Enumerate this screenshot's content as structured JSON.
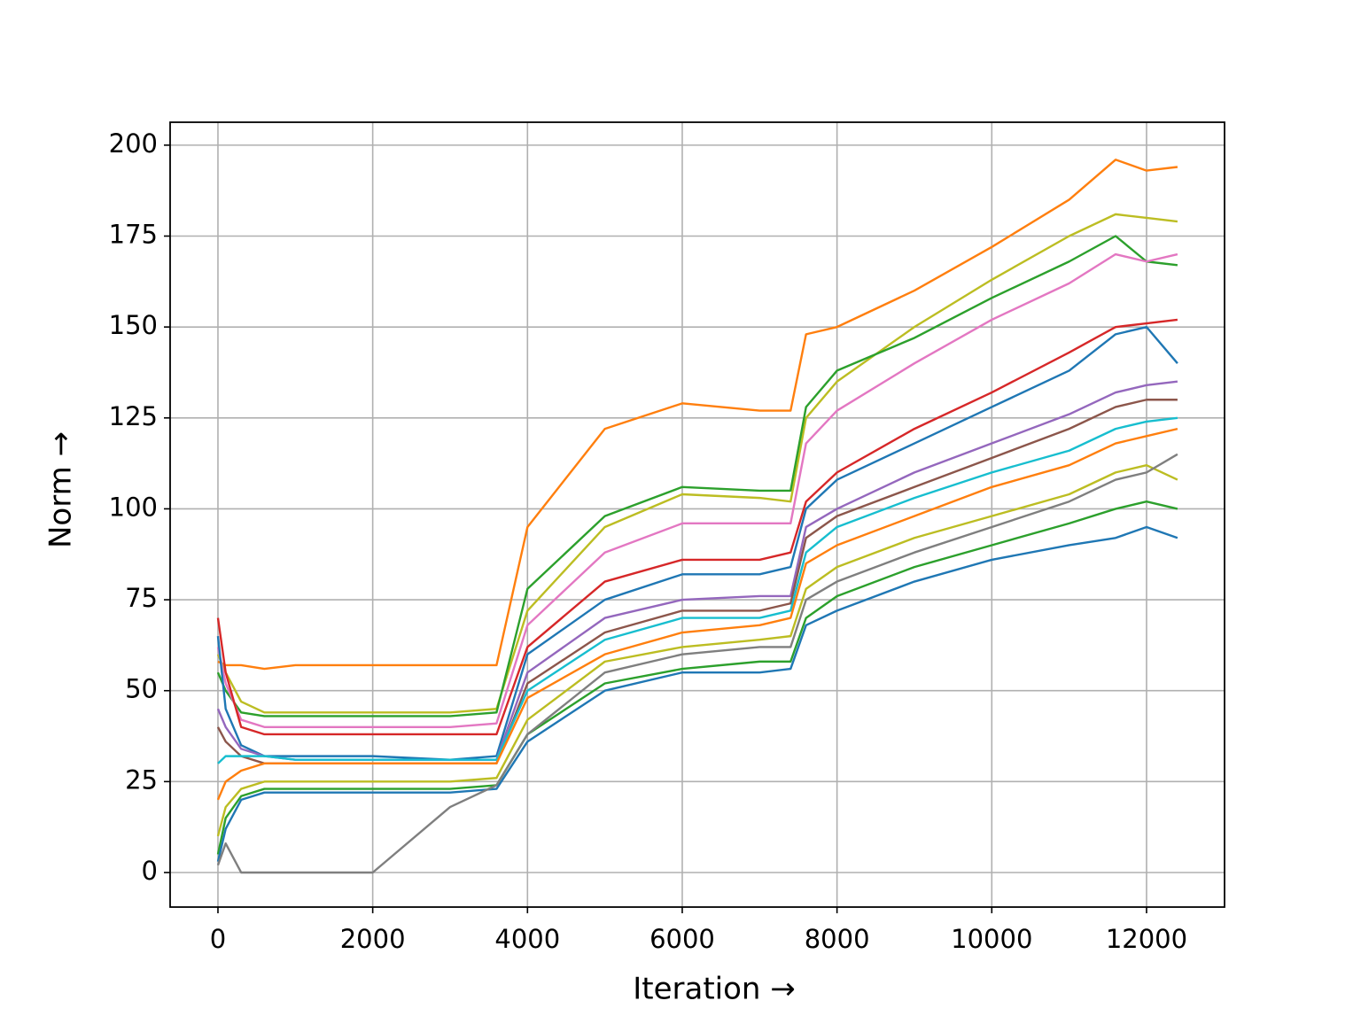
{
  "chart_data": {
    "type": "line",
    "xlabel": "Iteration →",
    "ylabel": "Norm →",
    "x": [
      0,
      100,
      300,
      600,
      1000,
      2000,
      3000,
      3600,
      4000,
      5000,
      6000,
      7000,
      7400,
      7600,
      8000,
      9000,
      10000,
      11000,
      11600,
      12000,
      12400
    ],
    "series": [
      {
        "color": "#ff7f0e",
        "values": [
          58,
          57,
          57,
          56,
          57,
          57,
          57,
          57,
          95,
          122,
          129,
          127,
          127,
          148,
          150,
          160,
          172,
          185,
          196,
          193,
          194
        ]
      },
      {
        "color": "#bcbd22",
        "values": [
          60,
          55,
          47,
          44,
          44,
          44,
          44,
          45,
          72,
          95,
          104,
          103,
          102,
          125,
          135,
          150,
          163,
          175,
          181,
          180,
          179
        ]
      },
      {
        "color": "#2ca02c",
        "values": [
          55,
          50,
          44,
          43,
          43,
          43,
          43,
          44,
          78,
          98,
          106,
          105,
          105,
          128,
          138,
          147,
          158,
          168,
          175,
          168,
          167
        ]
      },
      {
        "color": "#e377c2",
        "values": [
          62,
          52,
          42,
          40,
          40,
          40,
          40,
          41,
          68,
          88,
          96,
          96,
          96,
          118,
          127,
          140,
          152,
          162,
          170,
          168,
          170
        ]
      },
      {
        "color": "#d62728",
        "values": [
          70,
          55,
          40,
          38,
          38,
          38,
          38,
          38,
          62,
          80,
          86,
          86,
          88,
          102,
          110,
          122,
          132,
          143,
          150,
          151,
          152
        ]
      },
      {
        "color": "#1f77b4",
        "values": [
          65,
          45,
          35,
          32,
          32,
          32,
          31,
          32,
          60,
          75,
          82,
          82,
          84,
          100,
          108,
          118,
          128,
          138,
          148,
          150,
          140
        ]
      },
      {
        "color": "#9467bd",
        "values": [
          45,
          40,
          34,
          32,
          31,
          31,
          31,
          31,
          55,
          70,
          75,
          76,
          76,
          95,
          100,
          110,
          118,
          126,
          132,
          134,
          135
        ]
      },
      {
        "color": "#8c564b",
        "values": [
          40,
          36,
          32,
          30,
          30,
          30,
          30,
          30,
          52,
          66,
          72,
          72,
          74,
          92,
          98,
          106,
          114,
          122,
          128,
          130,
          130
        ]
      },
      {
        "color": "#17becf",
        "values": [
          30,
          32,
          32,
          32,
          31,
          31,
          31,
          31,
          50,
          64,
          70,
          70,
          72,
          88,
          95,
          103,
          110,
          116,
          122,
          124,
          125
        ]
      },
      {
        "color": "#ff7f0e",
        "values": [
          20,
          25,
          28,
          30,
          30,
          30,
          30,
          30,
          48,
          60,
          66,
          68,
          70,
          85,
          90,
          98,
          106,
          112,
          118,
          120,
          122
        ]
      },
      {
        "color": "#bcbd22",
        "values": [
          10,
          18,
          23,
          25,
          25,
          25,
          25,
          26,
          42,
          58,
          62,
          64,
          65,
          78,
          84,
          92,
          98,
          104,
          110,
          112,
          108
        ]
      },
      {
        "color": "#2ca02c",
        "values": [
          5,
          15,
          21,
          23,
          23,
          23,
          23,
          24,
          38,
          52,
          56,
          58,
          58,
          70,
          76,
          84,
          90,
          96,
          100,
          102,
          100
        ]
      },
      {
        "color": "#1f77b4",
        "values": [
          3,
          12,
          20,
          22,
          22,
          22,
          22,
          23,
          36,
          50,
          55,
          55,
          56,
          68,
          72,
          80,
          86,
          90,
          92,
          95,
          92
        ]
      },
      {
        "color": "#7f7f7f",
        "values": [
          2,
          8,
          0,
          0,
          0,
          0,
          18,
          24,
          38,
          55,
          60,
          62,
          62,
          75,
          80,
          88,
          95,
          102,
          108,
          110,
          115
        ]
      }
    ],
    "xlim": [
      -618,
      13008
    ],
    "ylim": [
      -9.5,
      206.3
    ],
    "xticks": [
      0,
      2000,
      4000,
      6000,
      8000,
      10000,
      12000
    ],
    "yticks": [
      0,
      25,
      50,
      75,
      100,
      125,
      150,
      175,
      200
    ],
    "grid": true
  }
}
